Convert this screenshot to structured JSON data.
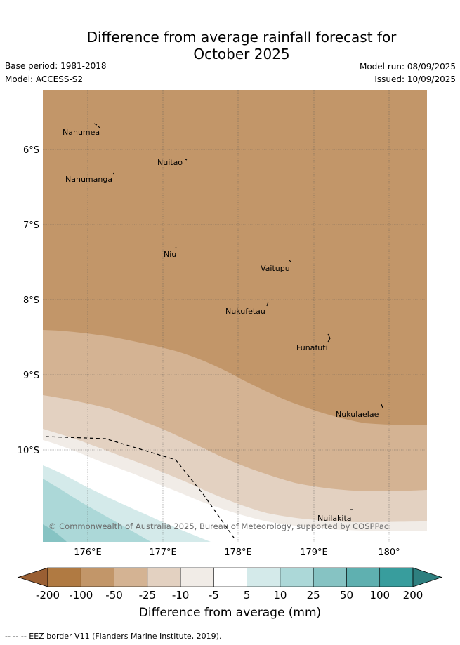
{
  "title_line1": "Difference from average rainfall forecast for",
  "title_line2": "October 2025",
  "meta": {
    "base_period": "Base period: 1981-2018",
    "model": "Model: ACCESS-S2",
    "model_run": "Model run: 08/09/2025",
    "issued": "Issued: 10/09/2025"
  },
  "map": {
    "lat_labels": [
      "6°S",
      "7°S",
      "8°S",
      "9°S",
      "10°S"
    ],
    "lon_labels": [
      "176°E",
      "177°E",
      "178°E",
      "179°E",
      "180°"
    ],
    "places": [
      "Nanumea",
      "Nuitao",
      "Nanumanga",
      "Niu",
      "Vaitupu",
      "Nukufetau",
      "Funafuti",
      "Nukulaelae",
      "Nuilakita"
    ],
    "copyright": "© Commonwealth of Australia 2025, Bureau of Meteorology, supported by COSPPac"
  },
  "colorbar": {
    "ticks": [
      "-200",
      "-100",
      "-50",
      "-25",
      "-10",
      "-5",
      "5",
      "10",
      "25",
      "50",
      "100",
      "200"
    ],
    "colors": [
      "#9a5f33",
      "#b07a42",
      "#c29669",
      "#d4b393",
      "#e3d1c1",
      "#f1ece7",
      "#ffffff",
      "#d4eaea",
      "#acd8d8",
      "#86c3c3",
      "#5fb0b0",
      "#389d9d",
      "#2e7f7f"
    ],
    "label": "Difference from average (mm)"
  },
  "footnote": "--  --  -- EEZ border V11 (Flanders Marine Institute, 2019)."
}
